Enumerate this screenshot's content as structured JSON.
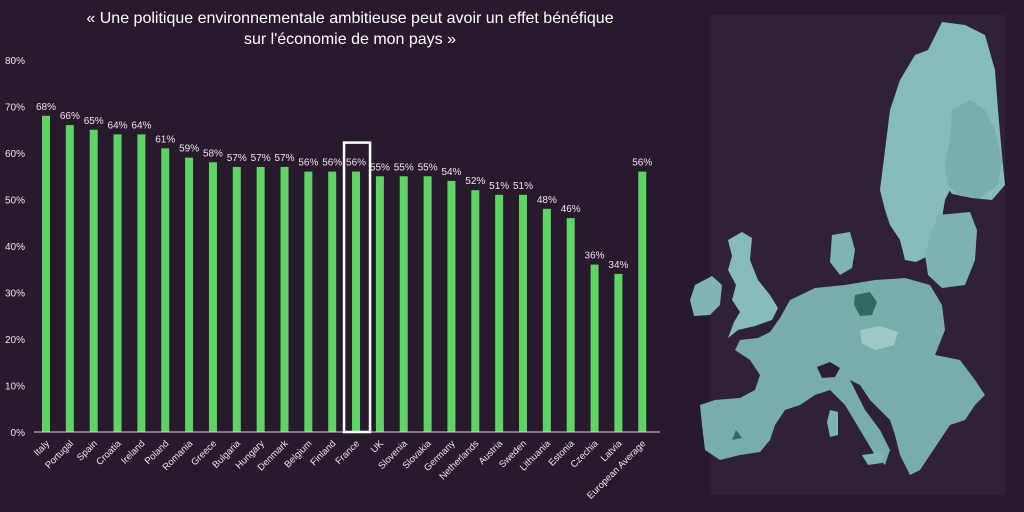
{
  "chart_data": {
    "type": "bar",
    "title": "« Une politique environnementale ambitieuse peut avoir un effet bénéfique sur l'économie de mon pays »",
    "title_lines": [
      "« Une politique environnementale ambitieuse peut avoir un effet bénéfique",
      "sur l'économie de mon pays »"
    ],
    "xlabel": "",
    "ylabel": "",
    "ylim": [
      0,
      80
    ],
    "yticks": [
      0,
      10,
      20,
      30,
      40,
      50,
      60,
      70,
      80
    ],
    "ytick_labels": [
      "0%",
      "10%",
      "20%",
      "30%",
      "40%",
      "50%",
      "60%",
      "70%",
      "80%"
    ],
    "grid": false,
    "categories": [
      "Italy",
      "Portugal",
      "Spain",
      "Croatia",
      "Ireland",
      "Poland",
      "Romania",
      "Greece",
      "Bulgaria",
      "Hungary",
      "Denmark",
      "Belgium",
      "Finland",
      "France",
      "UK",
      "Slovenia",
      "Slovakia",
      "Germany",
      "Netherlands",
      "Austria",
      "Sweden",
      "Lithuania",
      "Estonia",
      "Czechia",
      "Latvia",
      "European Average"
    ],
    "values": [
      68,
      66,
      65,
      64,
      64,
      61,
      59,
      58,
      57,
      57,
      57,
      56,
      56,
      56,
      55,
      55,
      55,
      54,
      52,
      51,
      51,
      48,
      46,
      36,
      34,
      56
    ],
    "data_labels": [
      "68%",
      "66%",
      "65%",
      "64%",
      "64%",
      "61%",
      "59%",
      "58%",
      "57%",
      "57%",
      "57%",
      "56%",
      "56%",
      "56%",
      "55%",
      "55%",
      "55%",
      "54%",
      "52%",
      "51%",
      "51%",
      "48%",
      "46%",
      "36%",
      "34%",
      "56%"
    ],
    "highlighted_category": "France",
    "bar_color": "#5dd464",
    "highlight_box_color": "#ffffff",
    "axis_color": "#d8d0dc"
  },
  "map": {
    "description": "Choropleth map of European regions",
    "land_color": "#7fb5b0",
    "dark_region_color": "#2f6a5f",
    "sea_color": "#2d1f33"
  }
}
